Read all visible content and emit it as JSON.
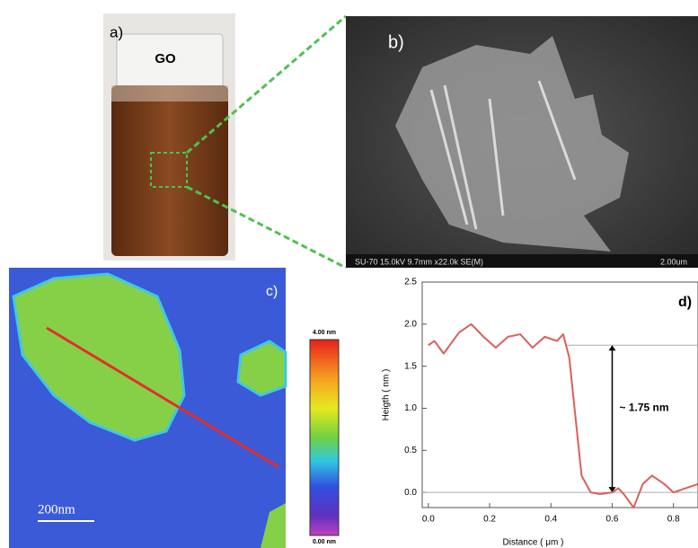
{
  "panels": {
    "a": {
      "label": "a)",
      "vial_text": "GO"
    },
    "b": {
      "label": "b)",
      "info": "SU-70 15.0kV 9.7mm x22.0k SE(M)",
      "scale": "2.00um"
    },
    "c": {
      "label": "c)",
      "scale_bar": "200nm",
      "colorbar_max": "4.00 nm",
      "colorbar_min": "0.00 nm"
    }
  },
  "chart_data": {
    "type": "line",
    "panel_label": "d)",
    "annotation": "~ 1.75 nm",
    "x_label": "Distance ( μm )",
    "y_label": "Heigth ( nm )",
    "x": [
      0,
      0.02,
      0.05,
      0.1,
      0.14,
      0.18,
      0.22,
      0.26,
      0.3,
      0.34,
      0.38,
      0.42,
      0.44,
      0.46,
      0.48,
      0.5,
      0.53,
      0.56,
      0.6,
      0.62,
      0.64,
      0.67,
      0.7,
      0.73,
      0.77,
      0.8,
      0.84,
      0.88
    ],
    "values": [
      1.75,
      1.8,
      1.65,
      1.9,
      2.0,
      1.85,
      1.72,
      1.85,
      1.88,
      1.72,
      1.85,
      1.8,
      1.88,
      1.6,
      0.9,
      0.2,
      0.0,
      -0.02,
      0.0,
      0.05,
      -0.03,
      -0.18,
      0.1,
      0.2,
      0.1,
      0.0,
      0.05,
      0.1
    ],
    "color": "#d9605a",
    "reference_lines": [
      0,
      1.75
    ],
    "xlim": [
      -0.02,
      0.88
    ],
    "ylim": [
      -0.18,
      2.5
    ],
    "xticks": [
      {
        "value": 0,
        "label": "0.0"
      },
      0.2,
      0.4,
      0.6,
      0.8
    ],
    "yticks": [
      {
        "value": 0,
        "label": "0.0"
      },
      0.5,
      {
        "value": 1,
        "label": "1.0"
      },
      1.5,
      {
        "value": 2,
        "label": "2.0"
      },
      2.5
    ]
  }
}
